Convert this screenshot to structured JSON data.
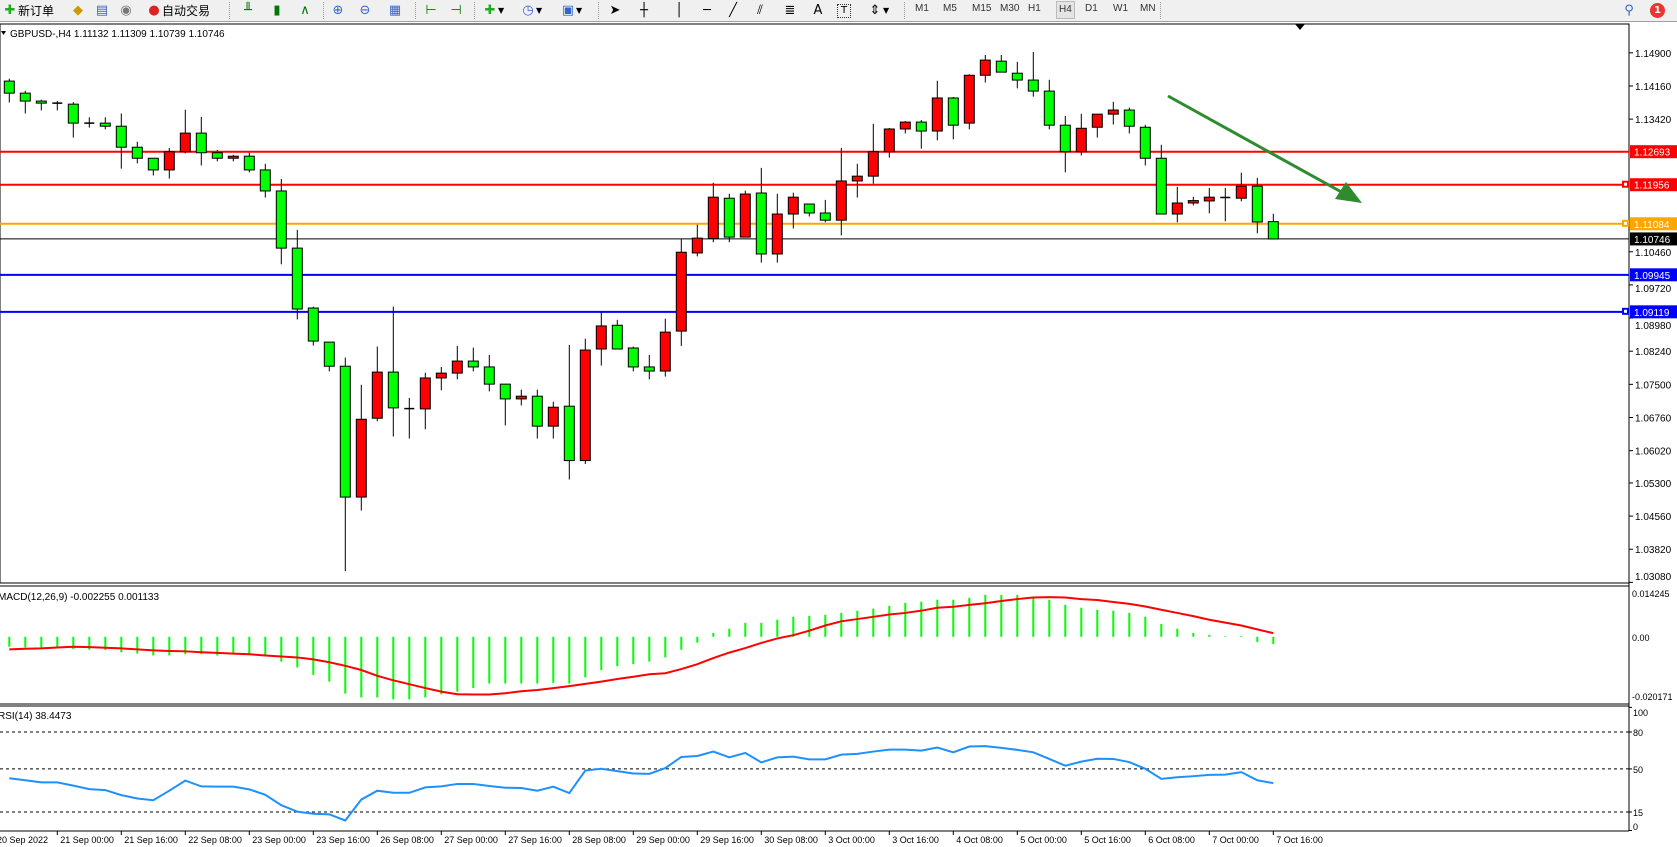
{
  "toolbar": {
    "new_order_label": "新订单",
    "auto_trading_label": "自动交易",
    "timeframes": [
      "M1",
      "M5",
      "M15",
      "M30",
      "H1",
      "H4",
      "D1",
      "W1",
      "MN"
    ],
    "selected_timeframe": "H4",
    "notification_count": "1"
  },
  "chart_data": {
    "type": "candlestick",
    "symbol_title": "GBPUSD-,H4  1.11132 1.11309 1.10739 1.10746",
    "colors": {
      "bull": "#ff0000",
      "bear": "#00ff00",
      "outline": "#000000",
      "macd_hist": "#00ff00",
      "macd_signal": "#ff0000",
      "rsi": "#1e90ff"
    },
    "ohlc": [
      [
        1.14269,
        1.14323,
        1.13792,
        1.14
      ],
      [
        1.14,
        1.14053,
        1.13546,
        1.13823
      ],
      [
        1.13823,
        1.13854,
        1.13615,
        1.13777
      ],
      [
        1.13777,
        1.13823,
        1.13615,
        1.13754
      ],
      [
        1.13754,
        1.138,
        1.13008,
        1.13331
      ],
      [
        1.13331,
        1.13462,
        1.13231,
        1.13331
      ],
      [
        1.13331,
        1.13462,
        1.13193,
        1.13262
      ],
      [
        1.13262,
        1.13546,
        1.12316,
        1.12793
      ],
      [
        1.12793,
        1.12916,
        1.12432,
        1.12547
      ],
      [
        1.12547,
        1.12547,
        1.12163,
        1.12286
      ],
      [
        1.12286,
        1.12778,
        1.12094,
        1.12693
      ],
      [
        1.12693,
        1.13631,
        1.12655,
        1.13108
      ],
      [
        1.13108,
        1.13469,
        1.12386,
        1.1267
      ],
      [
        1.1267,
        1.12731,
        1.12478,
        1.12547
      ],
      [
        1.12547,
        1.12624,
        1.12478,
        1.12593
      ],
      [
        1.12593,
        1.1267,
        1.12232,
        1.12286
      ],
      [
        1.12286,
        1.12424,
        1.11671,
        1.11817
      ],
      [
        1.11817,
        1.12086,
        1.1018,
        1.10541
      ],
      [
        1.10541,
        1.10948,
        1.0895,
        1.09181
      ],
      [
        1.09204,
        1.09234,
        1.08366,
        1.08466
      ],
      [
        1.08443,
        1.08443,
        1.07789,
        1.07905
      ],
      [
        1.07905,
        1.08097,
        1.03332,
        1.04984
      ],
      [
        1.04984,
        1.0749,
        1.04684,
        1.06721
      ],
      [
        1.06744,
        1.08343,
        1.06675,
        1.07774
      ],
      [
        1.07774,
        1.09234,
        1.06337,
        1.06975
      ],
      [
        1.06959,
        1.07198,
        1.06291,
        1.06959
      ],
      [
        1.06952,
        1.07759,
        1.06498,
        1.07643
      ],
      [
        1.07643,
        1.07889,
        1.07367,
        1.07751
      ],
      [
        1.07751,
        1.08358,
        1.07613,
        1.0802
      ],
      [
        1.0802,
        1.0832,
        1.07789,
        1.07889
      ],
      [
        1.07889,
        1.08158,
        1.07344,
        1.07505
      ],
      [
        1.07505,
        1.07505,
        1.06583,
        1.07175
      ],
      [
        1.07175,
        1.07382,
        1.07029,
        1.07236
      ],
      [
        1.07236,
        1.07382,
        1.06291,
        1.06567
      ],
      [
        1.06567,
        1.07113,
        1.06291,
        1.0699
      ],
      [
        1.07013,
        1.08381,
        1.05376,
        1.05799
      ],
      [
        1.05799,
        1.0852,
        1.05722,
        1.08266
      ],
      [
        1.08289,
        1.09111,
        1.0792,
        1.08804
      ],
      [
        1.08819,
        1.08942,
        1.08289,
        1.08289
      ],
      [
        1.08312,
        1.08343,
        1.07789,
        1.07889
      ],
      [
        1.07889,
        1.08158,
        1.07613,
        1.07797
      ],
      [
        1.07797,
        1.08965,
        1.07674,
        1.08666
      ],
      [
        1.08689,
        1.10741,
        1.08358,
        1.10449
      ],
      [
        1.10433,
        1.11064,
        1.10357,
        1.10764
      ],
      [
        1.10756,
        1.12001,
        1.10672,
        1.11678
      ],
      [
        1.11655,
        1.11755,
        1.10672,
        1.10787
      ],
      [
        1.10787,
        1.11825,
        1.10787,
        1.11748
      ],
      [
        1.11771,
        1.12332,
        1.10218,
        1.1041
      ],
      [
        1.1041,
        1.11755,
        1.10218,
        1.11302
      ],
      [
        1.11302,
        1.11778,
        1.10979,
        1.11678
      ],
      [
        1.11525,
        1.11525,
        1.11248,
        1.11325
      ],
      [
        1.11325,
        1.11617,
        1.11117,
        1.11164
      ],
      [
        1.11164,
        1.12778,
        1.10825,
        1.1204
      ],
      [
        1.1204,
        1.12424,
        1.11671,
        1.12147
      ],
      [
        1.12147,
        1.13316,
        1.11978,
        1.12693
      ],
      [
        1.12693,
        1.13223,
        1.12562,
        1.132
      ],
      [
        1.132,
        1.13377,
        1.131,
        1.13354
      ],
      [
        1.13354,
        1.134,
        1.12762,
        1.13154
      ],
      [
        1.13154,
        1.14276,
        1.12947,
        1.13892
      ],
      [
        1.13892,
        1.13915,
        1.1297,
        1.13285
      ],
      [
        1.13331,
        1.14422,
        1.13193,
        1.14399
      ],
      [
        1.14399,
        1.14853,
        1.14238,
        1.14738
      ],
      [
        1.14714,
        1.14853,
        1.14469,
        1.14469
      ],
      [
        1.14445,
        1.14699,
        1.14107,
        1.14292
      ],
      [
        1.14292,
        1.14922,
        1.13923,
        1.14046
      ],
      [
        1.14046,
        1.14299,
        1.13193,
        1.13285
      ],
      [
        1.13285,
        1.13492,
        1.12232,
        1.12693
      ],
      [
        1.12693,
        1.13539,
        1.12609,
        1.13216
      ],
      [
        1.13239,
        1.13531,
        1.13008,
        1.13531
      ],
      [
        1.13531,
        1.13808,
        1.133,
        1.13623
      ],
      [
        1.13623,
        1.13677,
        1.131,
        1.13262
      ],
      [
        1.13239,
        1.13293,
        1.12386,
        1.12547
      ],
      [
        1.12547,
        1.12847,
        1.11302,
        1.11302
      ],
      [
        1.11302,
        1.11909,
        1.11117,
        1.11548
      ],
      [
        1.11548,
        1.11686,
        1.11494,
        1.11602
      ],
      [
        1.11594,
        1.11886,
        1.11317,
        1.11678
      ],
      [
        1.11671,
        1.11886,
        1.1114,
        1.11671
      ],
      [
        1.11655,
        1.12224,
        1.11586,
        1.11924
      ],
      [
        1.11924,
        1.12109,
        1.10871,
        1.11125
      ],
      [
        1.11132,
        1.11309,
        1.10739,
        1.10746
      ]
    ],
    "price_ticks": [
      "1.14900",
      "1.14160",
      "1.13420",
      "1.10460",
      "1.09720",
      "1.08980",
      "1.08240",
      "1.07500",
      "1.06760",
      "1.06020",
      "1.05300",
      "1.04560",
      "1.03820",
      "1.03080"
    ],
    "horizontal_lines": [
      {
        "price": "1.12693",
        "color": "#ff0000"
      },
      {
        "price": "1.11956",
        "color": "#ff0000"
      },
      {
        "price": "1.11084",
        "color": "#ffa500"
      },
      {
        "price": "1.10746",
        "color": "#000000"
      },
      {
        "price": "1.09945",
        "color": "#0000ff"
      },
      {
        "price": "1.09119",
        "color": "#0000ff"
      }
    ],
    "trend_arrow": {
      "color": "#2e8b2e",
      "direction": "down-right"
    },
    "time_labels": [
      "20 Sep 2022",
      "21 Sep 00:00",
      "21 Sep 16:00",
      "22 Sep 08:00",
      "23 Sep 00:00",
      "23 Sep 16:00",
      "26 Sep 08:00",
      "27 Sep 00:00",
      "27 Sep 16:00",
      "28 Sep 08:00",
      "29 Sep 00:00",
      "29 Sep 16:00",
      "30 Sep 08:00",
      "3 Oct 00:00",
      "3 Oct 16:00",
      "4 Oct 08:00",
      "5 Oct 00:00",
      "5 Oct 16:00",
      "6 Oct 08:00",
      "7 Oct 00:00",
      "7 Oct 16:00"
    ],
    "macd": {
      "title": "MACD(12,26,9) -0.002255 0.001133",
      "ticks": [
        "0.014245",
        "0.00",
        "-0.020171"
      ],
      "range": [
        -0.020171,
        0.014245
      ],
      "histogram": [
        -0.0031,
        -0.0033,
        -0.0033,
        -0.0033,
        -0.0038,
        -0.004,
        -0.0041,
        -0.0048,
        -0.0052,
        -0.0058,
        -0.0058,
        -0.0054,
        -0.0054,
        -0.0058,
        -0.0052,
        -0.0056,
        -0.0056,
        -0.0077,
        -0.0095,
        -0.0118,
        -0.0139,
        -0.0176,
        -0.0188,
        -0.0188,
        -0.0194,
        -0.0194,
        -0.0188,
        -0.0178,
        -0.017,
        -0.0159,
        -0.0145,
        -0.0145,
        -0.0145,
        -0.0145,
        -0.0143,
        -0.0145,
        -0.0126,
        -0.0103,
        -0.0091,
        -0.0085,
        -0.0077,
        -0.0064,
        -0.004,
        -0.0018,
        0.0012,
        0.0025,
        0.0043,
        0.0043,
        0.0053,
        0.0062,
        0.0065,
        0.0068,
        0.0074,
        0.0081,
        0.0087,
        0.0096,
        0.0105,
        0.0109,
        0.0115,
        0.0115,
        0.0121,
        0.013,
        0.013,
        0.013,
        0.0124,
        0.0115,
        0.0099,
        0.009,
        0.0084,
        0.0081,
        0.0074,
        0.0062,
        0.004,
        0.0025,
        0.0012,
        0.0006,
        0.0002,
        0.0003,
        -0.0016,
        -0.002255
      ],
      "signal": [
        -0.0039,
        -0.0037,
        -0.0036,
        -0.0033,
        -0.0031,
        -0.0032,
        -0.0034,
        -0.0036,
        -0.0039,
        -0.0042,
        -0.0044,
        -0.0045,
        -0.0048,
        -0.005,
        -0.0052,
        -0.0054,
        -0.0058,
        -0.0061,
        -0.0064,
        -0.007,
        -0.0079,
        -0.009,
        -0.0103,
        -0.0121,
        -0.0135,
        -0.0147,
        -0.0159,
        -0.017,
        -0.0178,
        -0.0179,
        -0.0179,
        -0.0175,
        -0.0169,
        -0.0165,
        -0.0159,
        -0.0153,
        -0.0146,
        -0.0139,
        -0.0131,
        -0.0124,
        -0.0116,
        -0.0113,
        -0.01,
        -0.0085,
        -0.0066,
        -0.0049,
        -0.0035,
        -0.0019,
        -0.0005,
        0.0005,
        0.0019,
        0.0035,
        0.0048,
        0.0055,
        0.0062,
        0.0069,
        0.0074,
        0.0081,
        0.009,
        0.0093,
        0.0099,
        0.0104,
        0.0111,
        0.0117,
        0.0122,
        0.0123,
        0.0122,
        0.0117,
        0.0114,
        0.0108,
        0.0102,
        0.0094,
        0.0084,
        0.0074,
        0.0064,
        0.0053,
        0.0044,
        0.0035,
        0.0023,
        0.001133
      ]
    },
    "rsi": {
      "title": "RSI(14) 38.4473",
      "ticks": [
        "100",
        "80",
        "50",
        "15",
        "0"
      ],
      "levels": [
        80,
        50,
        15
      ],
      "values": [
        42.4,
        40.8,
        39.1,
        39.1,
        36.4,
        33.6,
        32.8,
        28.7,
        26.0,
        24.6,
        32.3,
        40.5,
        35.8,
        35.6,
        35.6,
        33.4,
        29.0,
        20.5,
        15.3,
        13.6,
        13.1,
        8.1,
        25.1,
        32.3,
        30.6,
        30.6,
        35.0,
        35.8,
        37.8,
        37.8,
        36.1,
        34.7,
        34.5,
        32.3,
        35.6,
        30.4,
        48.7,
        50.1,
        48.2,
        46.3,
        46.0,
        50.7,
        59.7,
        60.5,
        64.1,
        59.4,
        63.0,
        55.3,
        59.4,
        60.0,
        57.8,
        57.8,
        61.6,
        62.2,
        64.1,
        65.7,
        65.7,
        64.9,
        67.4,
        63.5,
        68.2,
        68.5,
        67.1,
        65.5,
        63.5,
        58.1,
        52.6,
        55.9,
        58.3,
        58.1,
        55.6,
        50.1,
        41.9,
        43.2,
        44.1,
        45.2,
        45.4,
        47.4,
        40.8,
        38.4473
      ]
    }
  }
}
